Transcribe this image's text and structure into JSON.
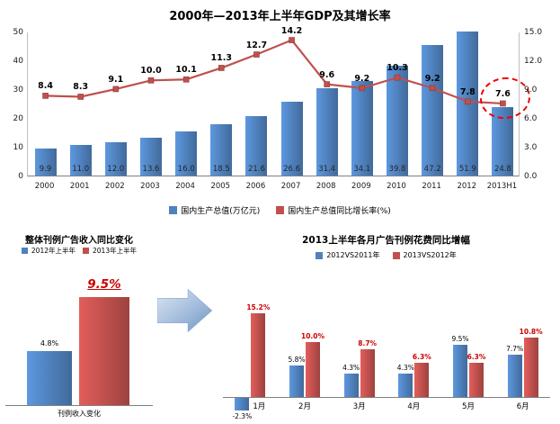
{
  "chart_data": [
    {
      "id": "gdp-combo",
      "type": "bar",
      "subtype": "bar+line combo",
      "title": "2000年—2013年上半年GDP及其增长率",
      "categories": [
        "2000",
        "2001",
        "2002",
        "2003",
        "2004",
        "2005",
        "2006",
        "2007",
        "2008",
        "2009",
        "2010",
        "2011",
        "2012",
        "2013H1"
      ],
      "series": [
        {
          "name": "国内生产总值(万亿元)",
          "type": "bar",
          "axis": "left",
          "color": "#4F81BD",
          "values": [
            9.9,
            11.0,
            12.0,
            13.6,
            16.0,
            18.5,
            21.6,
            26.6,
            31.4,
            34.1,
            39.8,
            47.2,
            51.9,
            24.8
          ]
        },
        {
          "name": "国内生产总值同比增长率(%)",
          "type": "line",
          "axis": "right",
          "color": "#C0504D",
          "values": [
            8.4,
            8.3,
            9.1,
            10.0,
            10.1,
            11.3,
            12.7,
            14.2,
            9.6,
            9.2,
            10.3,
            9.2,
            7.8,
            7.6
          ]
        }
      ],
      "left_axis": {
        "min": 0,
        "max": 50,
        "ticks": [
          "0",
          "10",
          "20",
          "30",
          "40",
          "50"
        ]
      },
      "right_axis": {
        "min": 0,
        "max": 15,
        "ticks": [
          "0.0",
          "3.0",
          "6.0",
          "9.0",
          "12.0",
          "15.0"
        ]
      },
      "annotation": "last growth value 7.6 circled with red dashed ellipse",
      "legend_position": "bottom",
      "grid": false
    },
    {
      "id": "halfyear-revenue",
      "type": "bar",
      "title": "整体刊例广告收入同比变化",
      "categories": [
        "刊例收入变化"
      ],
      "series": [
        {
          "name": "2012年上半年",
          "color": "#4F81BD",
          "values": [
            4.8
          ],
          "labels": [
            "4.8%"
          ]
        },
        {
          "name": "2013年上半年",
          "color": "#C0504D",
          "values": [
            9.5
          ],
          "labels": [
            "9.5%"
          ]
        }
      ],
      "emphasis": "9.5% rendered large, red, italic, underlined",
      "legend_position": "top",
      "grid": false
    },
    {
      "id": "monthly-growth",
      "type": "bar",
      "subtype": "grouped bar",
      "title": "2013上半年各月广告刊例花费同比增幅",
      "categories": [
        "1月",
        "2月",
        "3月",
        "4月",
        "5月",
        "6月"
      ],
      "series": [
        {
          "name": "2012VS2011年",
          "color": "#4F81BD",
          "values": [
            -2.3,
            5.8,
            4.3,
            4.3,
            9.5,
            7.7
          ],
          "labels": [
            "-2.3%",
            "5.8%",
            "4.3%",
            "4.3%",
            "9.5%",
            "7.7%"
          ]
        },
        {
          "name": "2013VS2012年",
          "color": "#C0504D",
          "values": [
            15.2,
            10.0,
            8.7,
            6.3,
            6.3,
            10.8
          ],
          "labels": [
            "15.2%",
            "10.0%",
            "8.7%",
            "6.3%",
            "6.3%",
            "10.8%"
          ]
        }
      ],
      "legend_position": "top",
      "grid": false
    }
  ],
  "colors": {
    "bar_blue": "#4F81BD",
    "bar_red": "#C0504D",
    "highlight_dash_red": "#EE0000",
    "emphasis_label_red": "#CC0000"
  },
  "icons": {
    "arrow": "right-arrow"
  }
}
